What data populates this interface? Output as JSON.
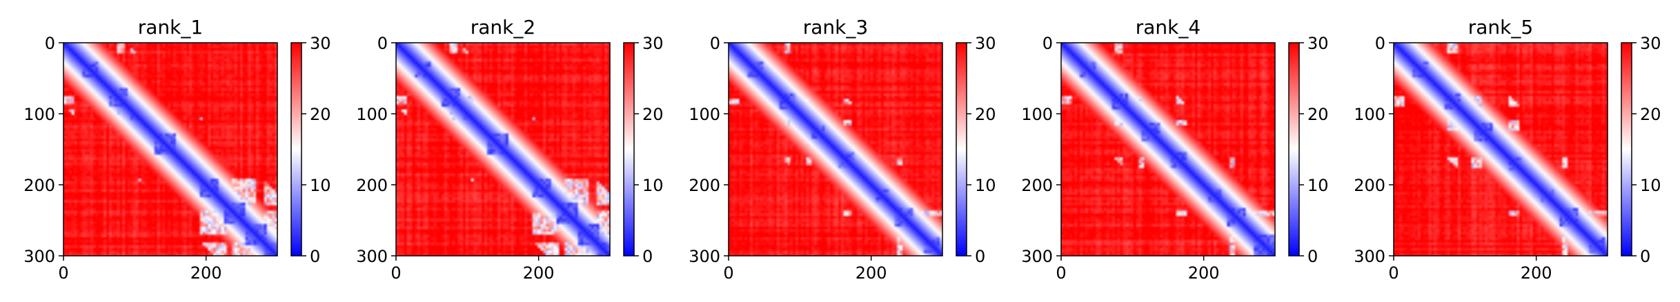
{
  "chart_data": [
    {
      "type": "heatmap",
      "title": "rank_1",
      "seed": 11,
      "xticks": [
        0,
        200
      ],
      "yticks": [
        0,
        100,
        200,
        300
      ],
      "xlim": [
        0,
        300
      ],
      "ylim": [
        300,
        0
      ],
      "colorbar": {
        "min": 0,
        "max": 30,
        "ticks": [
          0,
          10,
          20,
          30
        ],
        "colormap": [
          "#0000ff",
          "#ffffff",
          "#ff0000"
        ]
      },
      "low_error_regions": [
        [
          -2,
          15
        ],
        [
          75,
          88
        ],
        [
          92,
          108
        ],
        [
          190,
          230
        ],
        [
          235,
          270
        ],
        [
          280,
          305
        ]
      ],
      "diagonal_domains": [
        [
          35,
          40,
          12
        ],
        [
          75,
          80,
          14
        ],
        [
          100,
          105,
          8
        ],
        [
          140,
          145,
          16
        ],
        [
          200,
          210,
          12
        ],
        [
          235,
          245,
          14
        ],
        [
          265,
          275,
          16
        ],
        [
          290,
          295,
          12
        ]
      ]
    },
    {
      "type": "heatmap",
      "title": "rank_2",
      "seed": 23,
      "xticks": [
        0,
        200
      ],
      "yticks": [
        0,
        100,
        200,
        300
      ],
      "xlim": [
        0,
        300
      ],
      "ylim": [
        300,
        0
      ],
      "colorbar": {
        "min": 0,
        "max": 30,
        "ticks": [
          0,
          10,
          20,
          30
        ],
        "colormap": [
          "#0000ff",
          "#ffffff",
          "#ff0000"
        ]
      },
      "low_error_regions": [
        [
          -2,
          15
        ],
        [
          75,
          88
        ],
        [
          92,
          108
        ],
        [
          190,
          230
        ],
        [
          235,
          270
        ],
        [
          280,
          305
        ]
      ],
      "diagonal_domains": [
        [
          35,
          40,
          12
        ],
        [
          75,
          80,
          14
        ],
        [
          100,
          105,
          8
        ],
        [
          140,
          145,
          16
        ],
        [
          200,
          210,
          12
        ],
        [
          235,
          245,
          14
        ],
        [
          265,
          275,
          16
        ],
        [
          290,
          295,
          12
        ]
      ]
    },
    {
      "type": "heatmap",
      "title": "rank_3",
      "seed": 37,
      "xticks": [
        0,
        200
      ],
      "yticks": [
        0,
        100,
        200,
        300
      ],
      "xlim": [
        0,
        300
      ],
      "ylim": [
        300,
        0
      ],
      "colorbar": {
        "min": 0,
        "max": 30,
        "ticks": [
          0,
          10,
          20,
          30
        ],
        "colormap": [
          "#0000ff",
          "#ffffff",
          "#ff0000"
        ]
      },
      "low_error_regions": [
        [
          -2,
          15
        ],
        [
          80,
          88
        ],
        [
          110,
          118
        ],
        [
          160,
          172
        ],
        [
          235,
          245
        ],
        [
          270,
          305
        ]
      ],
      "diagonal_domains": [
        [
          35,
          40,
          10
        ],
        [
          80,
          85,
          10
        ],
        [
          120,
          130,
          10
        ],
        [
          160,
          170,
          12
        ],
        [
          210,
          220,
          10
        ],
        [
          240,
          250,
          12
        ],
        [
          280,
          290,
          12
        ]
      ]
    },
    {
      "type": "heatmap",
      "title": "rank_4",
      "seed": 41,
      "xticks": [
        0,
        200
      ],
      "yticks": [
        0,
        100,
        200,
        300
      ],
      "xlim": [
        0,
        300
      ],
      "ylim": [
        300,
        0
      ],
      "colorbar": {
        "min": 0,
        "max": 30,
        "ticks": [
          0,
          10,
          20,
          30
        ],
        "colormap": [
          "#0000ff",
          "#ffffff",
          "#ff0000"
        ]
      },
      "low_error_regions": [
        [
          -2,
          15
        ],
        [
          75,
          88
        ],
        [
          110,
          118
        ],
        [
          160,
          175
        ],
        [
          235,
          245
        ],
        [
          270,
          305
        ]
      ],
      "diagonal_domains": [
        [
          35,
          40,
          10
        ],
        [
          80,
          85,
          12
        ],
        [
          120,
          130,
          12
        ],
        [
          160,
          170,
          12
        ],
        [
          210,
          220,
          10
        ],
        [
          240,
          250,
          12
        ],
        [
          280,
          290,
          14
        ]
      ]
    },
    {
      "type": "heatmap",
      "title": "rank_5",
      "seed": 53,
      "xticks": [
        0,
        200
      ],
      "yticks": [
        0,
        100,
        200,
        300
      ],
      "xlim": [
        0,
        300
      ],
      "ylim": [
        300,
        0
      ],
      "colorbar": {
        "min": 0,
        "max": 30,
        "ticks": [
          0,
          10,
          20,
          30
        ],
        "colormap": [
          "#0000ff",
          "#ffffff",
          "#ff0000"
        ]
      },
      "low_error_regions": [
        [
          -2,
          15
        ],
        [
          75,
          90
        ],
        [
          110,
          125
        ],
        [
          160,
          175
        ],
        [
          235,
          245
        ],
        [
          270,
          305
        ]
      ],
      "diagonal_domains": [
        [
          35,
          40,
          10
        ],
        [
          80,
          85,
          12
        ],
        [
          120,
          130,
          12
        ],
        [
          165,
          175,
          10
        ],
        [
          210,
          220,
          10
        ],
        [
          240,
          250,
          12
        ],
        [
          280,
          290,
          12
        ]
      ]
    }
  ]
}
